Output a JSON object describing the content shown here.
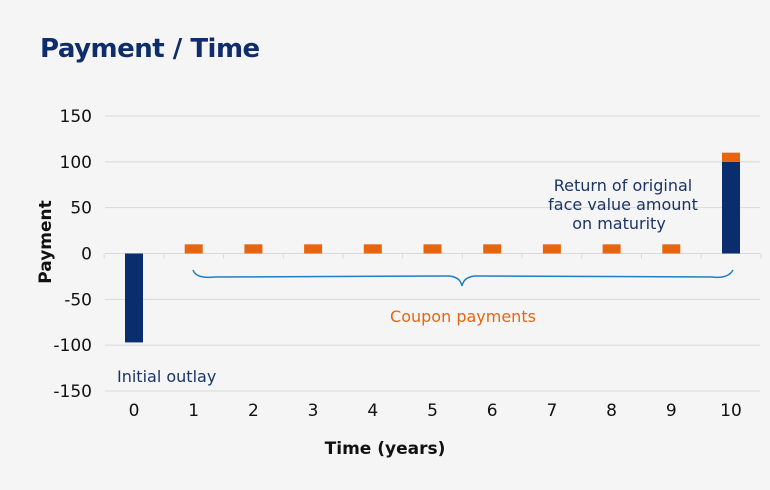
{
  "chart_data": {
    "type": "bar",
    "title": "Payment / Time",
    "xlabel": "Time (years)",
    "ylabel": "Payment",
    "ylim": [
      -150,
      150
    ],
    "yticks": [
      150,
      100,
      50,
      0,
      -50,
      -100,
      -150
    ],
    "categories": [
      "0",
      "1",
      "2",
      "3",
      "4",
      "5",
      "6",
      "7",
      "8",
      "9",
      "10"
    ],
    "stacked": true,
    "grid": true,
    "series": [
      {
        "values": [
          -97,
          0,
          0,
          0,
          0,
          0,
          0,
          0,
          0,
          0,
          100
        ],
        "color": "#0a2d6e"
      },
      {
        "values": [
          0,
          10,
          10,
          10,
          10,
          10,
          10,
          10,
          10,
          10,
          10
        ],
        "color": "#e8650f"
      }
    ],
    "annotations": {
      "initial_outlay": "Initial outlay",
      "coupon_payments": "Coupon payments",
      "maturity_line1": "Return of original",
      "maturity_line2": "face value amount",
      "maturity_line3": "on maturity"
    },
    "colors": {
      "title": "#0f2d6b",
      "brace": "#1f7fc4",
      "annotation_dark": "#1a3466",
      "annotation_orange": "#e8650f",
      "grid": "#d9d9d9"
    }
  }
}
